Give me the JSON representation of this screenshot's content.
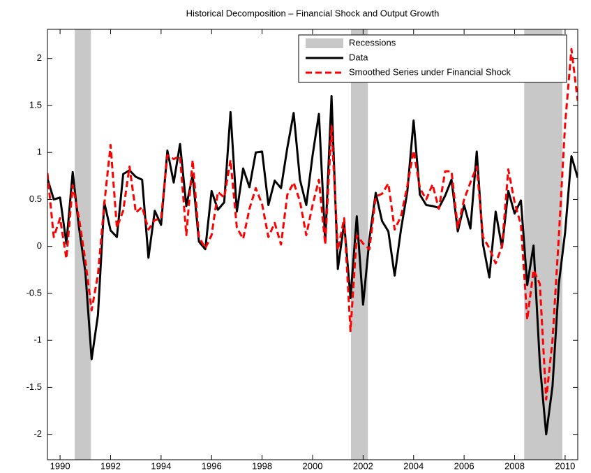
{
  "chart_data": {
    "type": "line",
    "title": "Historical Decomposition – Financial Shock and Output Growth",
    "x": [
      1989.5,
      1989.75,
      1990,
      1990.25,
      1990.5,
      1990.75,
      1991,
      1991.25,
      1991.5,
      1991.75,
      1992,
      1992.25,
      1992.5,
      1992.75,
      1993,
      1993.25,
      1993.5,
      1993.75,
      1994,
      1994.25,
      1994.5,
      1994.75,
      1995,
      1995.25,
      1995.5,
      1995.75,
      1996,
      1996.25,
      1996.5,
      1996.75,
      1997,
      1997.25,
      1997.5,
      1997.75,
      1998,
      1998.25,
      1998.5,
      1998.75,
      1999,
      1999.25,
      1999.5,
      1999.75,
      2000,
      2000.25,
      2000.5,
      2000.75,
      2001,
      2001.25,
      2001.5,
      2001.75,
      2002,
      2002.25,
      2002.5,
      2002.75,
      2003,
      2003.25,
      2003.5,
      2003.75,
      2004,
      2004.25,
      2004.5,
      2004.75,
      2005,
      2005.25,
      2005.5,
      2005.75,
      2006,
      2006.25,
      2006.5,
      2006.75,
      2007,
      2007.25,
      2007.5,
      2007.75,
      2008,
      2008.25,
      2008.5,
      2008.75,
      2009,
      2009.25,
      2009.5,
      2009.75,
      2010,
      2010.25,
      2010.5
    ],
    "recessions": {
      "name": "Recessions",
      "color": "#c8c8c8",
      "periods": [
        [
          1990.58,
          1991.22
        ],
        [
          2001.52,
          2002.19
        ],
        [
          2008.38,
          2009.89
        ]
      ]
    },
    "series": [
      {
        "name": "Data",
        "color": "#000000",
        "dash": false,
        "values": [
          0.72,
          0.5,
          0.52,
          0.03,
          0.79,
          0.2,
          -0.27,
          -1.2,
          -0.73,
          0.47,
          0.17,
          0.1,
          0.77,
          0.81,
          0.74,
          0.71,
          -0.12,
          0.38,
          0.23,
          1.02,
          0.68,
          1.09,
          0.43,
          0.76,
          0.05,
          -0.03,
          0.59,
          0.39,
          0.47,
          1.43,
          0.37,
          0.83,
          0.63,
          1.0,
          1.01,
          0.44,
          0.7,
          0.62,
          1.05,
          1.42,
          0.71,
          0.44,
          0.97,
          1.41,
          0.05,
          1.6,
          -0.24,
          0.25,
          -0.55,
          0.32,
          -0.62,
          0.08,
          0.57,
          0.27,
          0.16,
          -0.31,
          0.18,
          0.58,
          1.34,
          0.55,
          0.44,
          0.43,
          0.41,
          0.54,
          0.71,
          0.16,
          0.44,
          0.19,
          1.01,
          0.02,
          -0.33,
          0.37,
          -0.01,
          0.59,
          0.35,
          0.49,
          -0.41,
          0.01,
          -1.25,
          -2.0,
          -1.49,
          -0.4,
          0.15,
          0.96,
          0.73
        ]
      },
      {
        "name": "Smoothed Series under Financial Shock",
        "color": "#ff0000",
        "dash": true,
        "values": [
          0.78,
          0.1,
          0.3,
          -0.13,
          0.65,
          0.3,
          -0.15,
          -0.68,
          -0.3,
          0.45,
          1.08,
          0.2,
          0.38,
          0.85,
          0.36,
          0.42,
          0.18,
          0.28,
          0.3,
          0.97,
          0.93,
          0.96,
          0.12,
          0.92,
          0.1,
          -0.02,
          0.12,
          0.58,
          0.52,
          0.92,
          0.2,
          0.08,
          0.4,
          0.62,
          0.45,
          0.1,
          0.25,
          0.02,
          0.55,
          0.68,
          0.48,
          0.12,
          0.44,
          0.71,
          0.02,
          1.28,
          -0.04,
          0.3,
          -0.9,
          0.12,
          0.03,
          -0.03,
          0.53,
          0.56,
          0.67,
          0.18,
          0.32,
          0.64,
          1.02,
          0.62,
          0.5,
          0.66,
          0.4,
          0.8,
          0.8,
          0.2,
          0.5,
          0.68,
          0.85,
          0.1,
          -0.02,
          -0.18,
          0.0,
          0.82,
          0.47,
          0.23,
          -0.78,
          -0.25,
          -0.4,
          -1.63,
          -1.0,
          0.1,
          1.3,
          2.1,
          1.55
        ]
      }
    ],
    "xlim": [
      1989.5,
      2010.5
    ],
    "xticks": [
      1990,
      1992,
      1994,
      1996,
      1998,
      2000,
      2002,
      2004,
      2006,
      2008,
      2010
    ],
    "ylim": [
      -2.27,
      2.31
    ],
    "yticks": [
      -2,
      -1.5,
      -1,
      -0.5,
      0,
      0.5,
      1,
      1.5,
      2
    ],
    "legend": "upper right"
  }
}
